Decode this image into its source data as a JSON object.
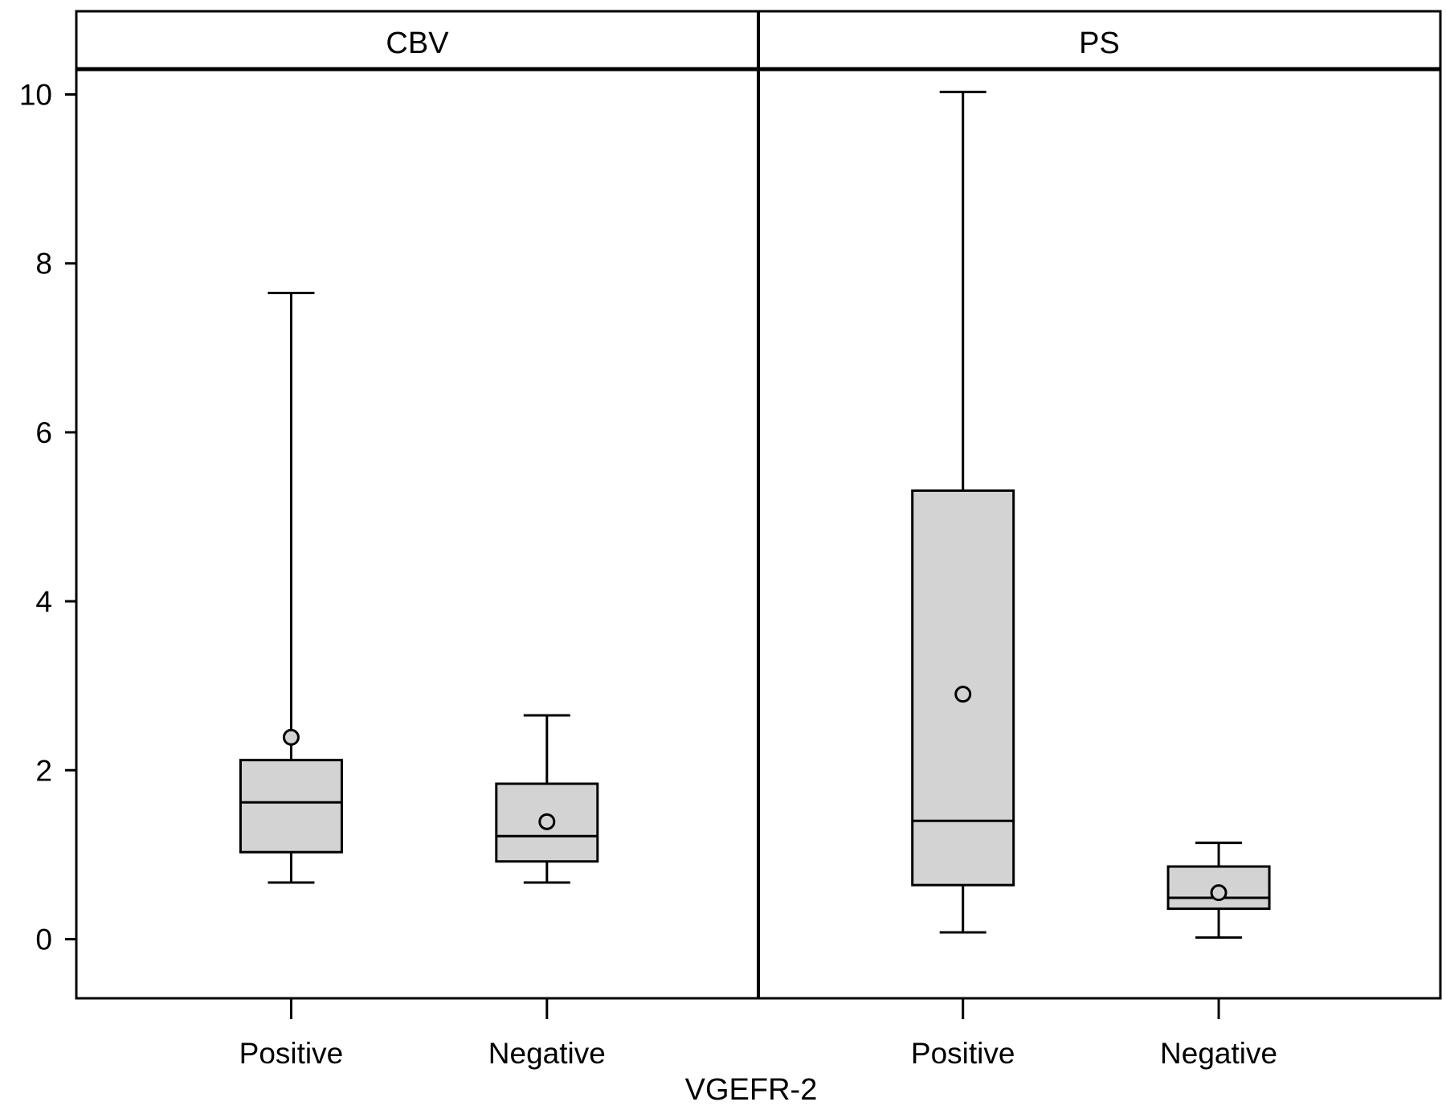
{
  "chart_data": {
    "type": "box",
    "xlabel": "VGEFR-2",
    "ylabel": "",
    "ylim": [
      -0.7,
      10.3
    ],
    "yticks": [
      0,
      2,
      4,
      6,
      8,
      10
    ],
    "tick_labels": [
      "0",
      "2",
      "4",
      "6",
      "8",
      "10"
    ],
    "grid": false,
    "colors": {
      "box_fill": "#d3d3d3",
      "stroke": "#000000",
      "background": "#ffffff"
    },
    "panels": [
      {
        "title": "CBV",
        "categories": [
          "Positive",
          "Negative"
        ],
        "boxes": [
          {
            "category": "Positive",
            "whisker_low": 0.67,
            "q1": 1.03,
            "median": 1.62,
            "q3": 2.12,
            "whisker_high": 7.65,
            "mean": 2.39
          },
          {
            "category": "Negative",
            "whisker_low": 0.67,
            "q1": 0.92,
            "median": 1.22,
            "q3": 1.84,
            "whisker_high": 2.65,
            "mean": 1.39
          }
        ]
      },
      {
        "title": "PS",
        "categories": [
          "Positive",
          "Negative"
        ],
        "boxes": [
          {
            "category": "Positive",
            "whisker_low": 0.08,
            "q1": 0.64,
            "median": 1.4,
            "q3": 5.31,
            "whisker_high": 10.03,
            "mean": 2.9
          },
          {
            "category": "Negative",
            "whisker_low": 0.02,
            "q1": 0.36,
            "median": 0.49,
            "q3": 0.86,
            "whisker_high": 1.14,
            "mean": 0.55
          }
        ]
      }
    ]
  }
}
